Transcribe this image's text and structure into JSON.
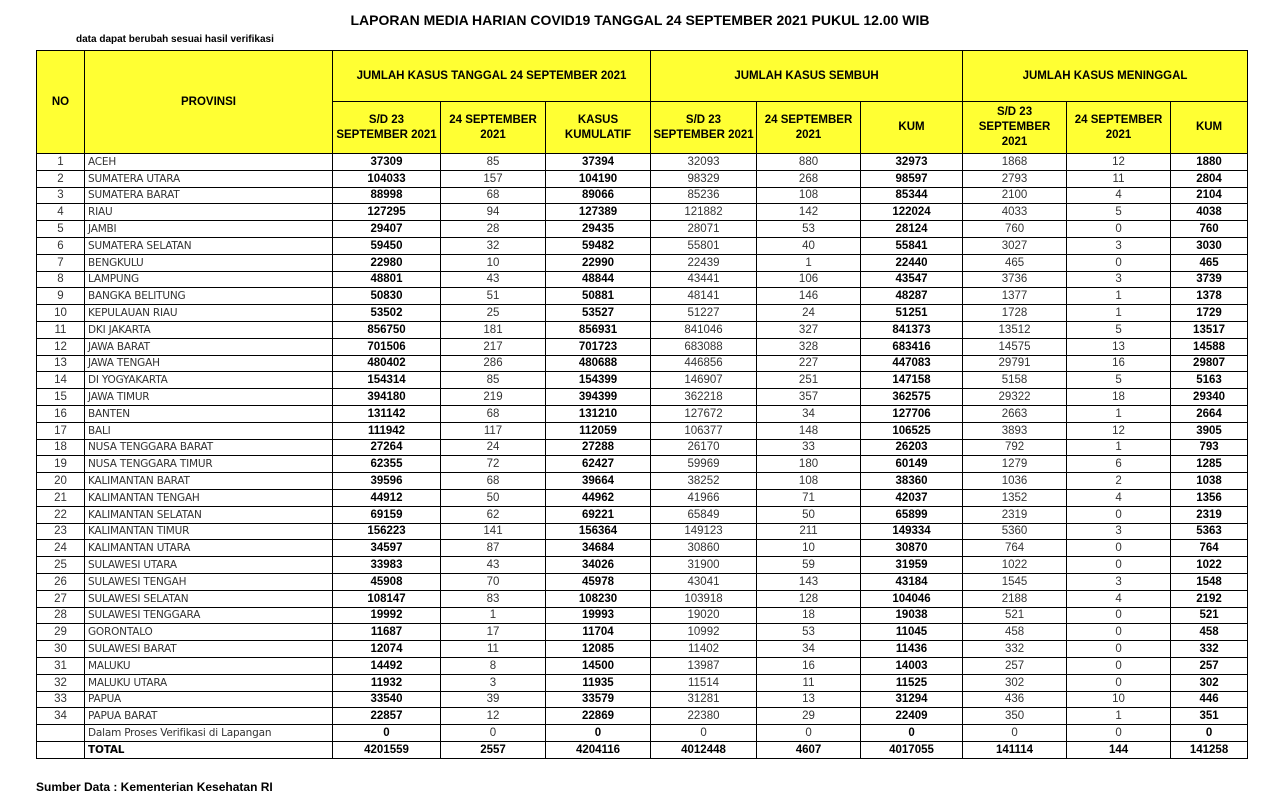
{
  "header": {
    "title": "LAPORAN MEDIA HARIAN COVID19 TANGGAL 24 SEPTEMBER 2021 PUKUL 12.00 WIB",
    "note": "data dapat berubah sesuai hasil verifikasi"
  },
  "table": {
    "columns": {
      "no": "NO",
      "province": "PROVINSI",
      "groups": [
        "JUMLAH KASUS TANGGAL 24 SEPTEMBER 2021",
        "JUMLAH KASUS SEMBUH",
        "JUMLAH KASUS MENINGGAL"
      ],
      "sub": [
        "S/D 23 SEPTEMBER 2021",
        "24 SEPTEMBER 2021",
        "KASUS KUMULATIF",
        "S/D 23 SEPTEMBER 2021",
        "24 SEPTEMBER 2021",
        "KUM",
        "S/D 23 SEPTEMBER 2021",
        "24 SEPTEMBER 2021",
        "KUM"
      ]
    },
    "rows": [
      {
        "no": 1,
        "province": "ACEH",
        "values": [
          37309,
          85,
          37394,
          32093,
          880,
          32973,
          1868,
          12,
          1880
        ]
      },
      {
        "no": 2,
        "province": "SUMATERA UTARA",
        "values": [
          104033,
          157,
          104190,
          98329,
          268,
          98597,
          2793,
          11,
          2804
        ]
      },
      {
        "no": 3,
        "province": "SUMATERA BARAT",
        "values": [
          88998,
          68,
          89066,
          85236,
          108,
          85344,
          2100,
          4,
          2104
        ]
      },
      {
        "no": 4,
        "province": "RIAU",
        "values": [
          127295,
          94,
          127389,
          121882,
          142,
          122024,
          4033,
          5,
          4038
        ]
      },
      {
        "no": 5,
        "province": "JAMBI",
        "values": [
          29407,
          28,
          29435,
          28071,
          53,
          28124,
          760,
          0,
          760
        ]
      },
      {
        "no": 6,
        "province": "SUMATERA SELATAN",
        "values": [
          59450,
          32,
          59482,
          55801,
          40,
          55841,
          3027,
          3,
          3030
        ]
      },
      {
        "no": 7,
        "province": "BENGKULU",
        "values": [
          22980,
          10,
          22990,
          22439,
          1,
          22440,
          465,
          0,
          465
        ]
      },
      {
        "no": 8,
        "province": "LAMPUNG",
        "values": [
          48801,
          43,
          48844,
          43441,
          106,
          43547,
          3736,
          3,
          3739
        ]
      },
      {
        "no": 9,
        "province": "BANGKA BELITUNG",
        "values": [
          50830,
          51,
          50881,
          48141,
          146,
          48287,
          1377,
          1,
          1378
        ]
      },
      {
        "no": 10,
        "province": "KEPULAUAN RIAU",
        "values": [
          53502,
          25,
          53527,
          51227,
          24,
          51251,
          1728,
          1,
          1729
        ]
      },
      {
        "no": 11,
        "province": "DKI JAKARTA",
        "values": [
          856750,
          181,
          856931,
          841046,
          327,
          841373,
          13512,
          5,
          13517
        ]
      },
      {
        "no": 12,
        "province": "JAWA BARAT",
        "values": [
          701506,
          217,
          701723,
          683088,
          328,
          683416,
          14575,
          13,
          14588
        ]
      },
      {
        "no": 13,
        "province": "JAWA TENGAH",
        "values": [
          480402,
          286,
          480688,
          446856,
          227,
          447083,
          29791,
          16,
          29807
        ]
      },
      {
        "no": 14,
        "province": "DI YOGYAKARTA",
        "values": [
          154314,
          85,
          154399,
          146907,
          251,
          147158,
          5158,
          5,
          5163
        ]
      },
      {
        "no": 15,
        "province": "JAWA TIMUR",
        "values": [
          394180,
          219,
          394399,
          362218,
          357,
          362575,
          29322,
          18,
          29340
        ]
      },
      {
        "no": 16,
        "province": "BANTEN",
        "values": [
          131142,
          68,
          131210,
          127672,
          34,
          127706,
          2663,
          1,
          2664
        ]
      },
      {
        "no": 17,
        "province": "BALI",
        "values": [
          111942,
          117,
          112059,
          106377,
          148,
          106525,
          3893,
          12,
          3905
        ]
      },
      {
        "no": 18,
        "province": "NUSA TENGGARA BARAT",
        "values": [
          27264,
          24,
          27288,
          26170,
          33,
          26203,
          792,
          1,
          793
        ]
      },
      {
        "no": 19,
        "province": "NUSA TENGGARA TIMUR",
        "values": [
          62355,
          72,
          62427,
          59969,
          180,
          60149,
          1279,
          6,
          1285
        ]
      },
      {
        "no": 20,
        "province": "KALIMANTAN BARAT",
        "values": [
          39596,
          68,
          39664,
          38252,
          108,
          38360,
          1036,
          2,
          1038
        ]
      },
      {
        "no": 21,
        "province": "KALIMANTAN TENGAH",
        "values": [
          44912,
          50,
          44962,
          41966,
          71,
          42037,
          1352,
          4,
          1356
        ]
      },
      {
        "no": 22,
        "province": "KALIMANTAN SELATAN",
        "values": [
          69159,
          62,
          69221,
          65849,
          50,
          65899,
          2319,
          0,
          2319
        ]
      },
      {
        "no": 23,
        "province": "KALIMANTAN TIMUR",
        "values": [
          156223,
          141,
          156364,
          149123,
          211,
          149334,
          5360,
          3,
          5363
        ]
      },
      {
        "no": 24,
        "province": "KALIMANTAN UTARA",
        "values": [
          34597,
          87,
          34684,
          30860,
          10,
          30870,
          764,
          0,
          764
        ]
      },
      {
        "no": 25,
        "province": "SULAWESI UTARA",
        "values": [
          33983,
          43,
          34026,
          31900,
          59,
          31959,
          1022,
          0,
          1022
        ]
      },
      {
        "no": 26,
        "province": "SULAWESI TENGAH",
        "values": [
          45908,
          70,
          45978,
          43041,
          143,
          43184,
          1545,
          3,
          1548
        ]
      },
      {
        "no": 27,
        "province": "SULAWESI SELATAN",
        "values": [
          108147,
          83,
          108230,
          103918,
          128,
          104046,
          2188,
          4,
          2192
        ]
      },
      {
        "no": 28,
        "province": "SULAWESI TENGGARA",
        "values": [
          19992,
          1,
          19993,
          19020,
          18,
          19038,
          521,
          0,
          521
        ]
      },
      {
        "no": 29,
        "province": "GORONTALO",
        "values": [
          11687,
          17,
          11704,
          10992,
          53,
          11045,
          458,
          0,
          458
        ]
      },
      {
        "no": 30,
        "province": "SULAWESI BARAT",
        "values": [
          12074,
          11,
          12085,
          11402,
          34,
          11436,
          332,
          0,
          332
        ]
      },
      {
        "no": 31,
        "province": "MALUKU",
        "values": [
          14492,
          8,
          14500,
          13987,
          16,
          14003,
          257,
          0,
          257
        ]
      },
      {
        "no": 32,
        "province": "MALUKU UTARA",
        "values": [
          11932,
          3,
          11935,
          11514,
          11,
          11525,
          302,
          0,
          302
        ]
      },
      {
        "no": 33,
        "province": "PAPUA",
        "values": [
          33540,
          39,
          33579,
          31281,
          13,
          31294,
          436,
          10,
          446
        ]
      },
      {
        "no": 34,
        "province": "PAPUA BARAT",
        "values": [
          22857,
          12,
          22869,
          22380,
          29,
          22409,
          350,
          1,
          351
        ]
      },
      {
        "province": "Dalam Proses Verifikasi di Lapangan",
        "values": [
          0,
          0,
          0,
          0,
          0,
          0,
          0,
          0,
          0
        ]
      },
      {
        "province": "TOTAL",
        "total": true,
        "values": [
          4201559,
          2557,
          4204116,
          4012448,
          4607,
          4017055,
          141114,
          144,
          141258
        ]
      }
    ]
  },
  "footer": {
    "source": "Sumber Data : Kementerian Kesehatan RI"
  }
}
